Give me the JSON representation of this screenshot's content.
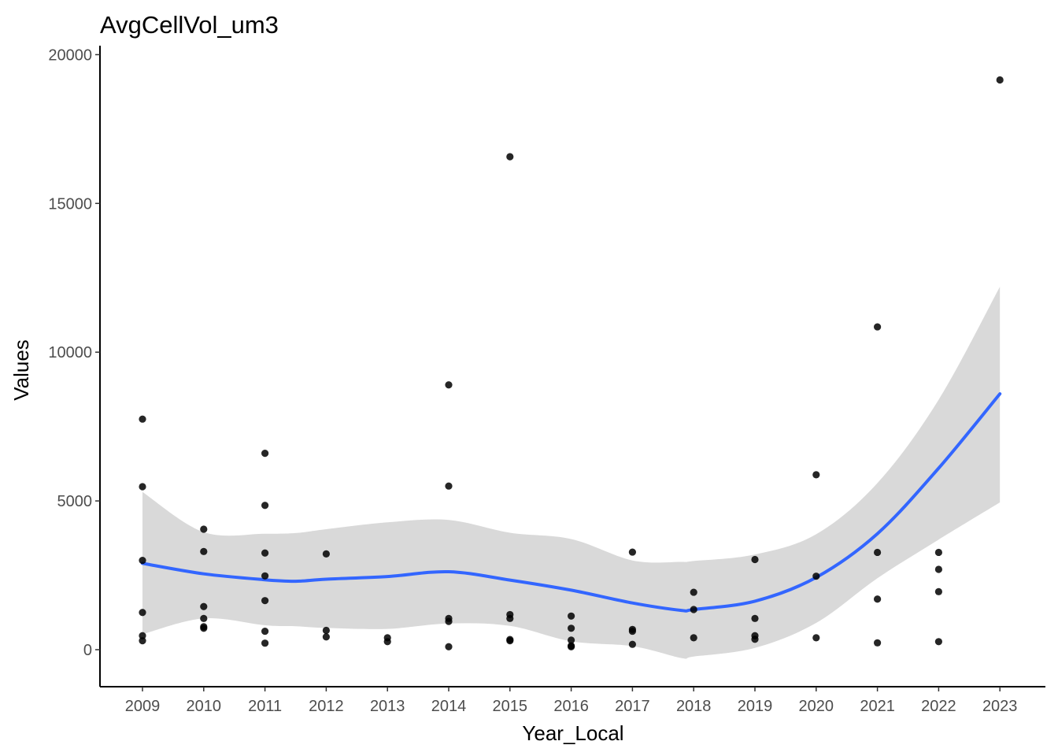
{
  "chart_data": {
    "type": "scatter",
    "title": "AvgCellVol_um3",
    "xlabel": "Year_Local",
    "ylabel": "Values",
    "x_categories": [
      "2009",
      "2010",
      "2011",
      "2012",
      "2013",
      "2014",
      "2015",
      "2016",
      "2017",
      "2018",
      "2019",
      "2020",
      "2021",
      "2022",
      "2023"
    ],
    "y_ticks": [
      0,
      5000,
      10000,
      15000,
      20000
    ],
    "y_tick_labels": [
      "0",
      "5000",
      "10000",
      "15000",
      "20000"
    ],
    "ylim": [
      -1300,
      20150
    ],
    "grid": false,
    "legend": "none",
    "colors": {
      "points": "#000000",
      "smooth_line": "#3366ff",
      "confidence_band": "#d9d9d9"
    },
    "points": [
      {
        "x": 2009,
        "y": 7750
      },
      {
        "x": 2009,
        "y": 5480
      },
      {
        "x": 2009,
        "y": 3000
      },
      {
        "x": 2009,
        "y": 1250
      },
      {
        "x": 2009,
        "y": 470
      },
      {
        "x": 2009,
        "y": 300
      },
      {
        "x": 2010,
        "y": 4050
      },
      {
        "x": 2010,
        "y": 3300
      },
      {
        "x": 2010,
        "y": 1450
      },
      {
        "x": 2010,
        "y": 1050
      },
      {
        "x": 2010,
        "y": 770
      },
      {
        "x": 2010,
        "y": 720
      },
      {
        "x": 2011,
        "y": 6600
      },
      {
        "x": 2011,
        "y": 4850
      },
      {
        "x": 2011,
        "y": 3250
      },
      {
        "x": 2011,
        "y": 2480
      },
      {
        "x": 2011,
        "y": 1650
      },
      {
        "x": 2011,
        "y": 620
      },
      {
        "x": 2011,
        "y": 220
      },
      {
        "x": 2012,
        "y": 3220
      },
      {
        "x": 2012,
        "y": 650
      },
      {
        "x": 2012,
        "y": 430
      },
      {
        "x": 2013,
        "y": 400
      },
      {
        "x": 2013,
        "y": 270
      },
      {
        "x": 2014,
        "y": 8900
      },
      {
        "x": 2014,
        "y": 5500
      },
      {
        "x": 2014,
        "y": 1050
      },
      {
        "x": 2014,
        "y": 950
      },
      {
        "x": 2014,
        "y": 100
      },
      {
        "x": 2015,
        "y": 16570
      },
      {
        "x": 2015,
        "y": 1180
      },
      {
        "x": 2015,
        "y": 1050
      },
      {
        "x": 2015,
        "y": 340
      },
      {
        "x": 2015,
        "y": 300
      },
      {
        "x": 2016,
        "y": 1130
      },
      {
        "x": 2016,
        "y": 720
      },
      {
        "x": 2016,
        "y": 320
      },
      {
        "x": 2016,
        "y": 130
      },
      {
        "x": 2016,
        "y": 100
      },
      {
        "x": 2017,
        "y": 3280
      },
      {
        "x": 2017,
        "y": 680
      },
      {
        "x": 2017,
        "y": 620
      },
      {
        "x": 2017,
        "y": 180
      },
      {
        "x": 2018,
        "y": 1930
      },
      {
        "x": 2018,
        "y": 1350
      },
      {
        "x": 2018,
        "y": 400
      },
      {
        "x": 2019,
        "y": 3030
      },
      {
        "x": 2019,
        "y": 1050
      },
      {
        "x": 2019,
        "y": 470
      },
      {
        "x": 2019,
        "y": 350
      },
      {
        "x": 2020,
        "y": 5880
      },
      {
        "x": 2020,
        "y": 2470
      },
      {
        "x": 2020,
        "y": 400
      },
      {
        "x": 2021,
        "y": 10850
      },
      {
        "x": 2021,
        "y": 3270
      },
      {
        "x": 2021,
        "y": 1700
      },
      {
        "x": 2021,
        "y": 230
      },
      {
        "x": 2022,
        "y": 3270
      },
      {
        "x": 2022,
        "y": 2700
      },
      {
        "x": 2022,
        "y": 1950
      },
      {
        "x": 2022,
        "y": 270
      },
      {
        "x": 2023,
        "y": 19150
      }
    ],
    "smooth": {
      "x": [
        2009,
        2010,
        2011,
        2011.5,
        2012,
        2013,
        2014,
        2015,
        2016,
        2017,
        2017.8,
        2018,
        2019,
        2020,
        2021,
        2022,
        2023
      ],
      "y": [
        2900,
        2550,
        2350,
        2300,
        2370,
        2460,
        2620,
        2340,
        2000,
        1570,
        1320,
        1350,
        1630,
        2430,
        3900,
        6100,
        8600
      ],
      "lower": [
        520,
        1050,
        820,
        790,
        730,
        700,
        880,
        800,
        280,
        120,
        -280,
        -230,
        60,
        900,
        2400,
        3700,
        4950
      ],
      "upper": [
        5300,
        3950,
        3900,
        3920,
        4050,
        4280,
        4360,
        3930,
        3720,
        3000,
        2950,
        2980,
        3200,
        3880,
        5600,
        8400,
        12200
      ]
    }
  }
}
